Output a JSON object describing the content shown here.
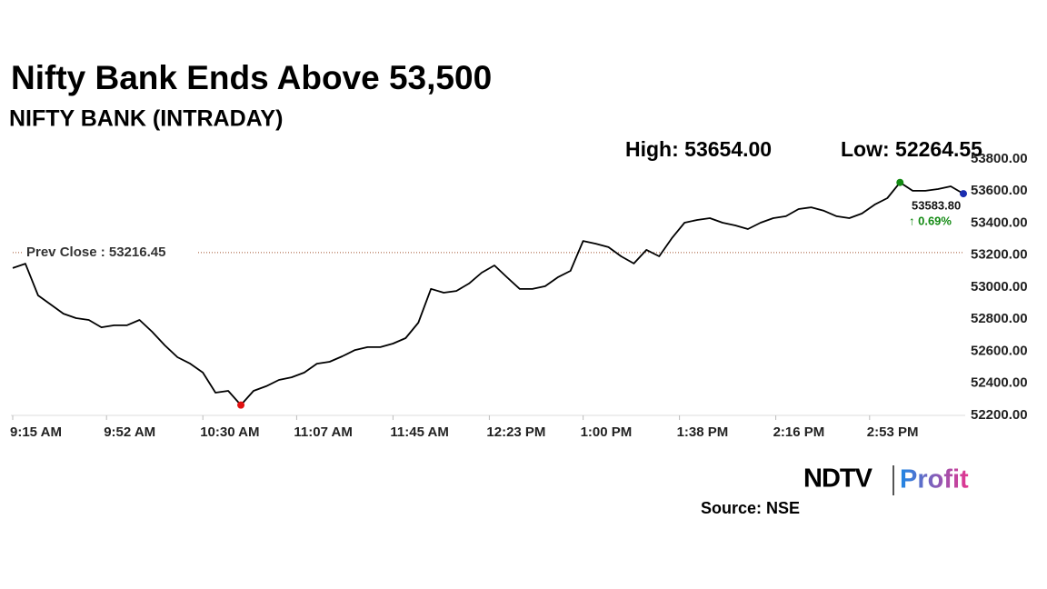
{
  "chart_data": {
    "type": "line",
    "title": "Nifty Bank Ends Above 53,500",
    "subtitle": "NIFTY BANK (INTRADAY)",
    "high": {
      "value": 53654,
      "label": "High: 53654.00",
      "color": "#138a13"
    },
    "low": {
      "value": 52264.55,
      "label": "Low: 52264.55",
      "color": "#e01010"
    },
    "last": {
      "value": 53583.8,
      "label": "53583.80",
      "change": "↑ 0.69%",
      "color": "#1a2db0",
      "change_color": "#138a13"
    },
    "prev_close": {
      "value": 53216.45,
      "label": "Prev Close : 53216.45"
    },
    "color": "#000000",
    "x": [
      "9:15 AM",
      "9:20 AM",
      "9:25 AM",
      "9:30 AM",
      "9:35 AM",
      "9:40 AM",
      "9:45 AM",
      "9:50 AM",
      "9:55 AM",
      "10:00 AM",
      "10:05 AM",
      "10:10 AM",
      "10:15 AM",
      "10:20 AM",
      "10:25 AM",
      "10:30 AM",
      "10:35 AM",
      "10:40 AM",
      "10:45 AM",
      "10:50 AM",
      "10:55 AM",
      "11:00 AM",
      "11:05 AM",
      "11:10 AM",
      "11:15 AM",
      "11:20 AM",
      "11:25 AM",
      "11:30 AM",
      "11:35 AM",
      "11:40 AM",
      "11:45 AM",
      "11:50 AM",
      "11:55 AM",
      "12:00 PM",
      "12:05 PM",
      "12:10 PM",
      "12:15 PM",
      "12:20 PM",
      "12:25 PM",
      "12:30 PM",
      "12:35 PM",
      "12:40 PM",
      "12:45 PM",
      "12:50 PM",
      "12:55 PM",
      "1:00 PM",
      "1:05 PM",
      "1:10 PM",
      "1:15 PM",
      "1:20 PM",
      "1:25 PM",
      "1:30 PM",
      "1:35 PM",
      "1:40 PM",
      "1:45 PM",
      "1:50 PM",
      "1:55 PM",
      "2:00 PM",
      "2:05 PM",
      "2:10 PM",
      "2:15 PM",
      "2:20 PM",
      "2:25 PM",
      "2:30 PM",
      "2:35 PM",
      "2:40 PM",
      "2:45 PM",
      "2:50 PM",
      "2:55 PM",
      "3:00 PM",
      "3:05 PM",
      "3:10 PM",
      "3:15 PM",
      "3:20 PM",
      "3:25 PM",
      "3:30 PM"
    ],
    "values": [
      53120,
      53147,
      52949,
      52892,
      52835,
      52807,
      52796,
      52750,
      52762,
      52762,
      52796,
      52722,
      52637,
      52563,
      52523,
      52467,
      52342,
      52353,
      52264.55,
      52353,
      52382,
      52421,
      52438,
      52467,
      52523,
      52535,
      52569,
      52608,
      52626,
      52626,
      52648,
      52682,
      52779,
      52990,
      52966,
      52977,
      53023,
      53091,
      53136,
      53062,
      52989,
      52989,
      53006,
      53062,
      53102,
      53289,
      53272,
      53250,
      53193,
      53148,
      53233,
      53193,
      53306,
      53403,
      53420,
      53431,
      53403,
      53386,
      53363,
      53403,
      53431,
      53443,
      53488,
      53499,
      53477,
      53443,
      53431,
      53460,
      53516,
      53556,
      53654,
      53602,
      53602,
      53613,
      53630,
      53583.8
    ],
    "xlim": [
      "9:15 AM",
      "3:30 PM"
    ],
    "xticks": [
      "9:15 AM",
      "9:52 AM",
      "10:30 AM",
      "11:07 AM",
      "11:45 AM",
      "12:23 PM",
      "1:00 PM",
      "1:38 PM",
      "2:16 PM",
      "2:53 PM"
    ],
    "ylim": [
      52200,
      53800
    ],
    "yticks": [
      {
        "value": 52200,
        "label": "52200.00"
      },
      {
        "value": 52400,
        "label": "52400.00"
      },
      {
        "value": 52600,
        "label": "52600.00"
      },
      {
        "value": 52800,
        "label": "52800.00"
      },
      {
        "value": 53000,
        "label": "53000.00"
      },
      {
        "value": 53200,
        "label": "53200.00"
      },
      {
        "value": 53400,
        "label": "53400.00"
      },
      {
        "value": 53600,
        "label": "53600.00"
      },
      {
        "value": 53800,
        "label": "53800.00"
      }
    ],
    "grid": false,
    "brand": {
      "name": "NDTV",
      "product": "Profit"
    },
    "source": "Source: NSE"
  }
}
